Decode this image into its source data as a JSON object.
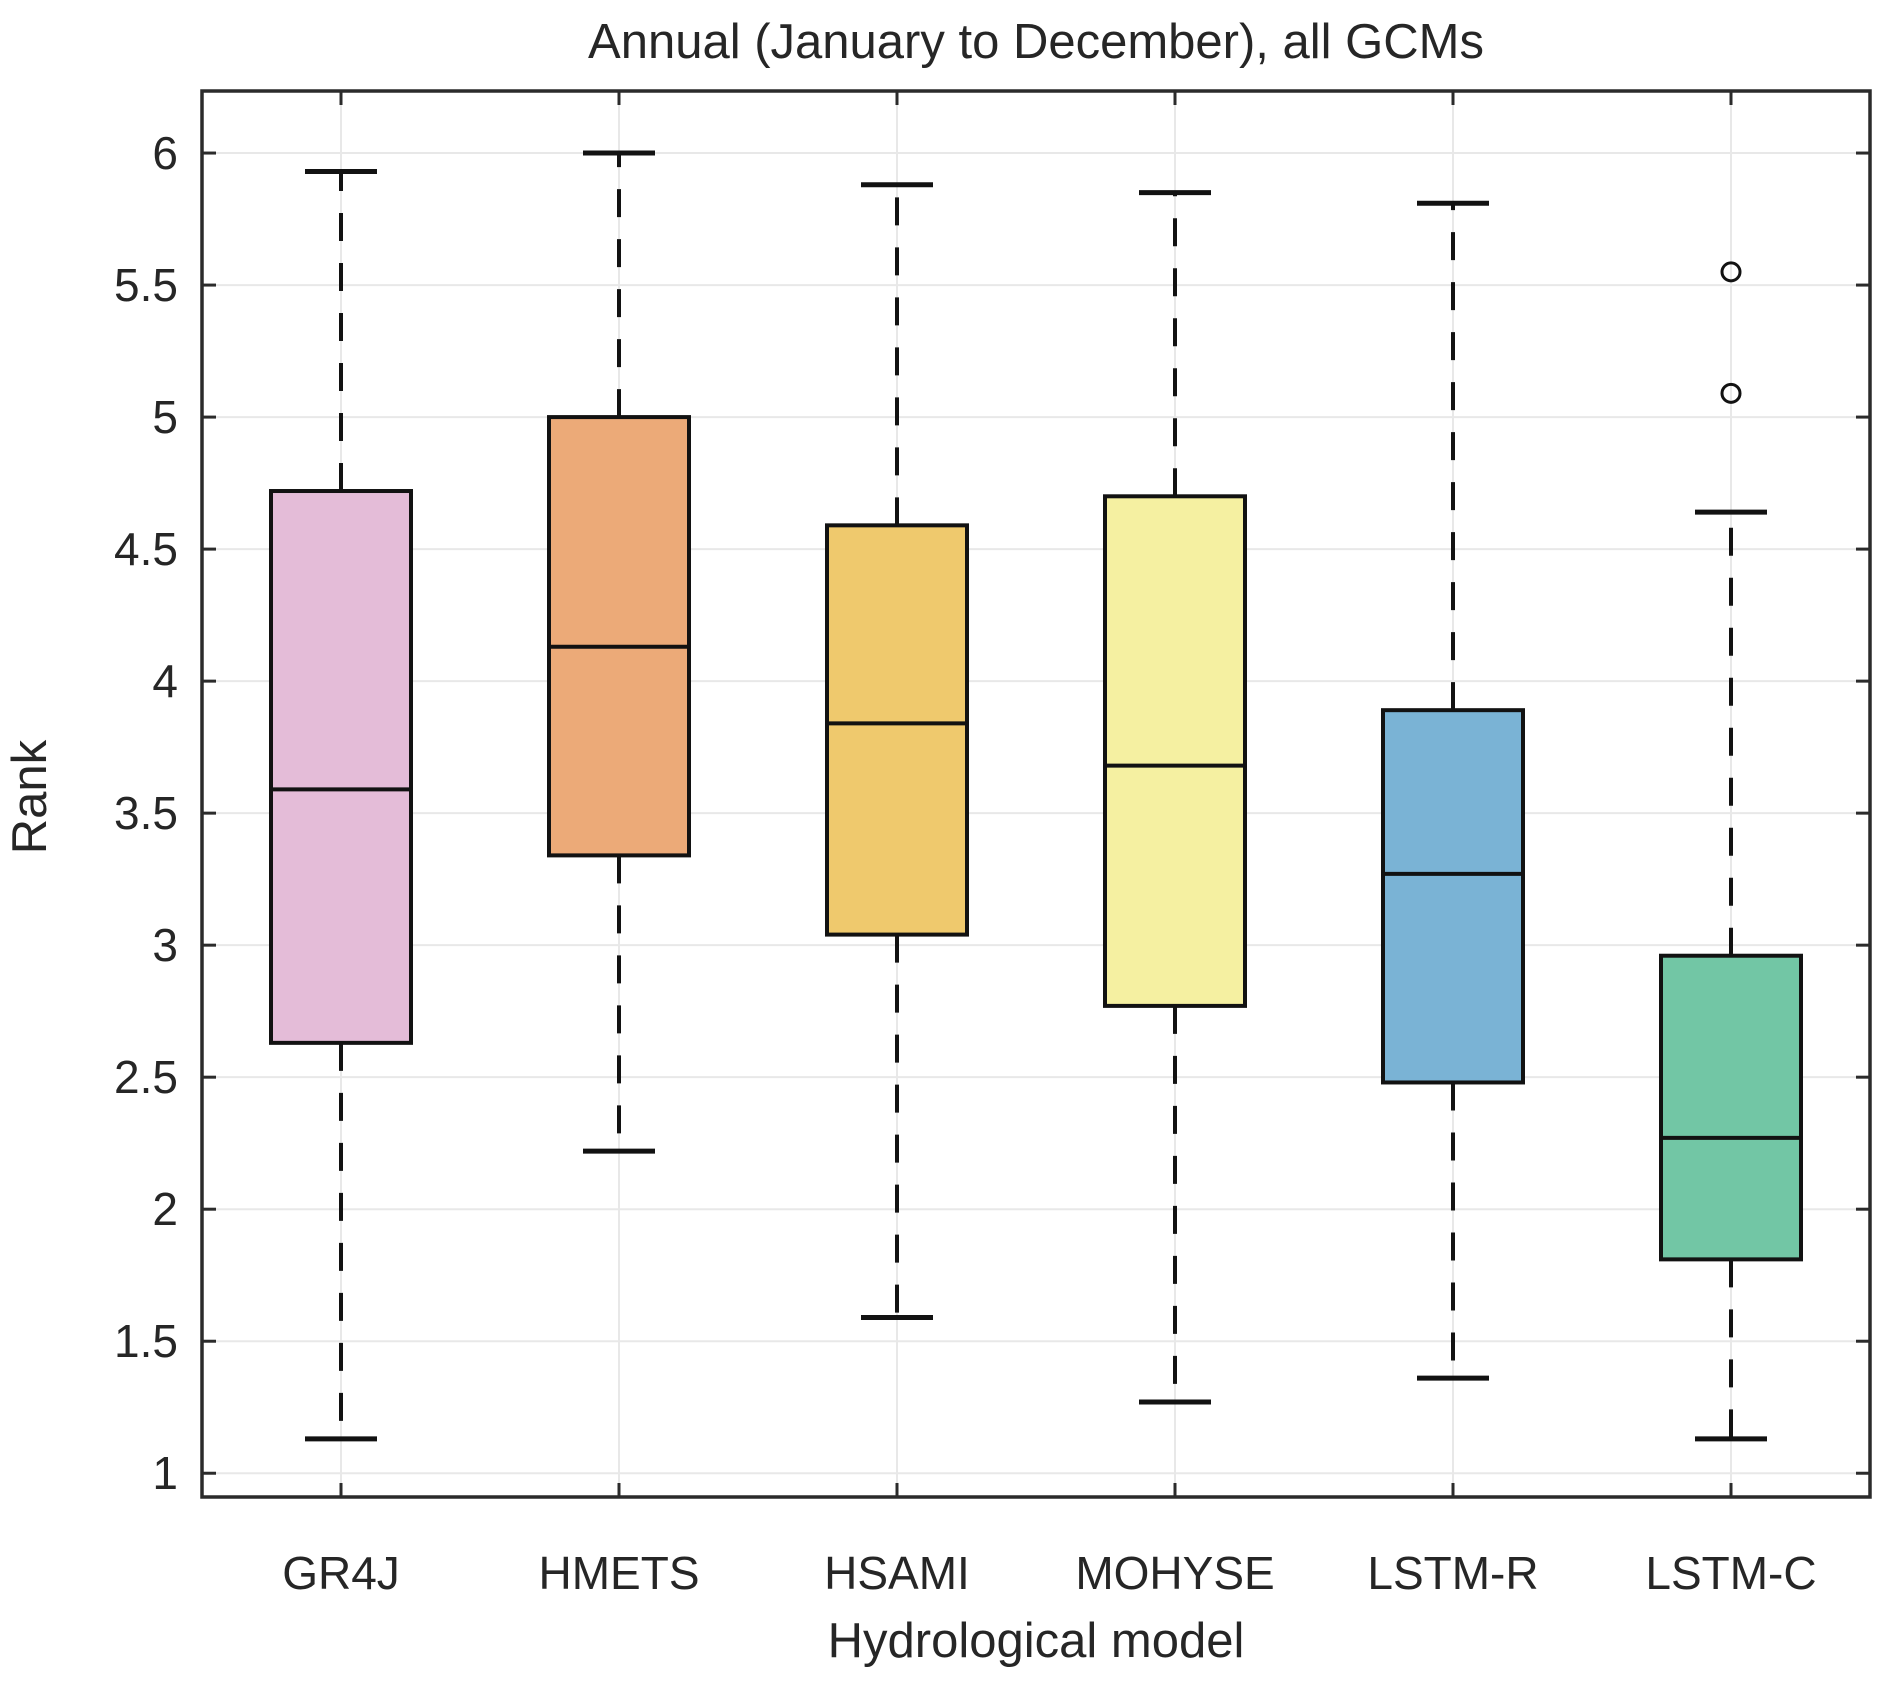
{
  "figure": {
    "title": "Annual (January to December), all GCMs",
    "xlabel": "Hydrological model",
    "ylabel": "Rank"
  },
  "chart_data": {
    "type": "box",
    "title": "Annual (January to December), all GCMs",
    "xlabel": "Hydrological model",
    "ylabel": "Rank",
    "categories": [
      "GR4J",
      "HMETS",
      "HSAMI",
      "MOHYSE",
      "LSTM-R",
      "LSTM-C"
    ],
    "ylim": [
      0.91,
      6.235
    ],
    "y_ticks": [
      {
        "value": 1,
        "label": "1"
      },
      {
        "value": 1.5,
        "label": "1.5"
      },
      {
        "value": 2,
        "label": "2"
      },
      {
        "value": 2.5,
        "label": "2.5"
      },
      {
        "value": 3,
        "label": "3"
      },
      {
        "value": 3.5,
        "label": "3.5"
      },
      {
        "value": 4,
        "label": "4"
      },
      {
        "value": 4.5,
        "label": "4.5"
      },
      {
        "value": 5,
        "label": "5"
      },
      {
        "value": 5.5,
        "label": "5.5"
      },
      {
        "value": 6,
        "label": "6"
      }
    ],
    "grid": true,
    "legend": "none",
    "style": {
      "axis_color": "#2b2b2b",
      "gridline_color": "#e8e8e8",
      "text_color": "#262626",
      "box_edge_color": "#121212",
      "median_color": "#121212",
      "whisker_color": "#121212",
      "outlier_edge_color": "#121212"
    },
    "series": [
      {
        "model": "GR4J",
        "fill": "#e4bcd8",
        "whisker_low": 1.13,
        "q1": 2.63,
        "median": 3.59,
        "q3": 4.72,
        "whisker_high": 5.93,
        "outliers": []
      },
      {
        "model": "HMETS",
        "fill": "#ecaa78",
        "whisker_low": 2.22,
        "q1": 3.34,
        "median": 4.13,
        "q3": 5.0,
        "whisker_high": 6.0,
        "outliers": []
      },
      {
        "model": "HSAMI",
        "fill": "#efc96d",
        "whisker_low": 1.59,
        "q1": 3.04,
        "median": 3.84,
        "q3": 4.59,
        "whisker_high": 5.88,
        "outliers": []
      },
      {
        "model": "MOHYSE",
        "fill": "#f5f0a1",
        "whisker_low": 1.27,
        "q1": 2.77,
        "median": 3.68,
        "q3": 4.7,
        "whisker_high": 5.85,
        "outliers": []
      },
      {
        "model": "LSTM-R",
        "fill": "#7ab3d5",
        "whisker_low": 1.36,
        "q1": 2.48,
        "median": 3.27,
        "q3": 3.89,
        "whisker_high": 5.81,
        "outliers": []
      },
      {
        "model": "LSTM-C",
        "fill": "#72c6a5",
        "whisker_low": 1.13,
        "q1": 1.81,
        "median": 2.27,
        "q3": 2.96,
        "whisker_high": 4.64,
        "outliers": [
          5.55,
          5.09
        ]
      }
    ]
  }
}
